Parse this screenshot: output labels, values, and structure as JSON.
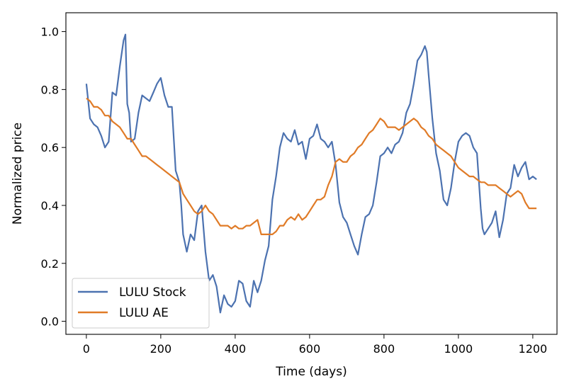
{
  "chart_data": {
    "type": "line",
    "xlabel": "Time (days)",
    "ylabel": "Normalized price",
    "xlim": [
      -55,
      1265
    ],
    "ylim": [
      -0.045,
      1.065
    ],
    "xticks": [
      0,
      200,
      400,
      600,
      800,
      1000,
      1200
    ],
    "yticks": [
      0.0,
      0.2,
      0.4,
      0.6,
      0.8,
      1.0
    ],
    "ytick_labels": [
      "0.0",
      "0.2",
      "0.4",
      "0.6",
      "0.8",
      "1.0"
    ],
    "grid": false,
    "legend_position": "lower-left",
    "series": [
      {
        "name": "LULU Stock",
        "color": "#4c72b0",
        "x": [
          0,
          10,
          20,
          30,
          40,
          50,
          60,
          70,
          80,
          90,
          100,
          105,
          110,
          115,
          120,
          130,
          140,
          150,
          160,
          170,
          180,
          190,
          200,
          210,
          220,
          230,
          240,
          250,
          255,
          260,
          270,
          280,
          290,
          300,
          310,
          320,
          330,
          340,
          350,
          360,
          370,
          380,
          390,
          400,
          410,
          420,
          430,
          440,
          450,
          460,
          470,
          480,
          490,
          500,
          510,
          520,
          530,
          540,
          550,
          560,
          570,
          580,
          590,
          600,
          610,
          620,
          630,
          640,
          650,
          660,
          670,
          680,
          690,
          700,
          710,
          720,
          730,
          740,
          750,
          760,
          770,
          780,
          790,
          800,
          810,
          820,
          830,
          840,
          850,
          860,
          870,
          880,
          890,
          900,
          910,
          915,
          920,
          930,
          940,
          950,
          960,
          970,
          980,
          990,
          1000,
          1010,
          1020,
          1030,
          1040,
          1050,
          1060,
          1065,
          1070,
          1080,
          1090,
          1100,
          1110,
          1120,
          1130,
          1140,
          1150,
          1160,
          1170,
          1180,
          1190,
          1200,
          1210
        ],
        "values": [
          0.82,
          0.7,
          0.68,
          0.67,
          0.64,
          0.6,
          0.62,
          0.79,
          0.78,
          0.88,
          0.97,
          0.99,
          0.75,
          0.72,
          0.62,
          0.63,
          0.72,
          0.78,
          0.77,
          0.76,
          0.79,
          0.82,
          0.84,
          0.78,
          0.74,
          0.74,
          0.52,
          0.48,
          0.4,
          0.3,
          0.24,
          0.3,
          0.28,
          0.38,
          0.4,
          0.24,
          0.14,
          0.16,
          0.12,
          0.03,
          0.09,
          0.06,
          0.05,
          0.07,
          0.14,
          0.13,
          0.07,
          0.05,
          0.14,
          0.1,
          0.14,
          0.21,
          0.26,
          0.42,
          0.5,
          0.6,
          0.65,
          0.63,
          0.62,
          0.66,
          0.61,
          0.62,
          0.56,
          0.63,
          0.64,
          0.68,
          0.63,
          0.62,
          0.6,
          0.62,
          0.54,
          0.41,
          0.36,
          0.34,
          0.3,
          0.26,
          0.23,
          0.3,
          0.36,
          0.37,
          0.4,
          0.48,
          0.57,
          0.58,
          0.6,
          0.58,
          0.61,
          0.62,
          0.65,
          0.72,
          0.75,
          0.82,
          0.9,
          0.92,
          0.95,
          0.93,
          0.85,
          0.7,
          0.58,
          0.52,
          0.42,
          0.4,
          0.46,
          0.55,
          0.62,
          0.64,
          0.65,
          0.64,
          0.6,
          0.58,
          0.39,
          0.32,
          0.3,
          0.32,
          0.34,
          0.38,
          0.29,
          0.35,
          0.44,
          0.46,
          0.54,
          0.5,
          0.53,
          0.55,
          0.49,
          0.5,
          0.49
        ]
      },
      {
        "name": "LULU AE",
        "color": "#e07b27",
        "x": [
          0,
          10,
          20,
          30,
          40,
          50,
          60,
          70,
          80,
          90,
          100,
          110,
          120,
          130,
          140,
          150,
          160,
          170,
          180,
          190,
          200,
          210,
          220,
          230,
          240,
          250,
          260,
          270,
          280,
          290,
          300,
          310,
          320,
          330,
          340,
          350,
          360,
          370,
          380,
          390,
          400,
          410,
          420,
          430,
          440,
          450,
          460,
          470,
          480,
          490,
          500,
          510,
          520,
          530,
          540,
          550,
          560,
          570,
          580,
          590,
          600,
          610,
          620,
          630,
          640,
          650,
          660,
          670,
          680,
          690,
          700,
          710,
          720,
          730,
          740,
          750,
          760,
          770,
          780,
          790,
          800,
          810,
          820,
          830,
          840,
          850,
          860,
          870,
          880,
          890,
          900,
          910,
          920,
          930,
          940,
          950,
          960,
          970,
          980,
          990,
          1000,
          1010,
          1020,
          1030,
          1040,
          1050,
          1060,
          1070,
          1080,
          1090,
          1100,
          1110,
          1120,
          1130,
          1140,
          1150,
          1160,
          1170,
          1180,
          1190,
          1200,
          1210
        ],
        "values": [
          0.77,
          0.76,
          0.74,
          0.74,
          0.73,
          0.71,
          0.71,
          0.69,
          0.68,
          0.67,
          0.65,
          0.63,
          0.63,
          0.61,
          0.59,
          0.57,
          0.57,
          0.56,
          0.55,
          0.54,
          0.53,
          0.52,
          0.51,
          0.5,
          0.49,
          0.48,
          0.44,
          0.42,
          0.4,
          0.38,
          0.37,
          0.38,
          0.4,
          0.38,
          0.37,
          0.35,
          0.33,
          0.33,
          0.33,
          0.32,
          0.33,
          0.32,
          0.32,
          0.33,
          0.33,
          0.34,
          0.35,
          0.3,
          0.3,
          0.3,
          0.3,
          0.31,
          0.33,
          0.33,
          0.35,
          0.36,
          0.35,
          0.37,
          0.35,
          0.36,
          0.38,
          0.4,
          0.42,
          0.42,
          0.43,
          0.47,
          0.5,
          0.55,
          0.56,
          0.55,
          0.55,
          0.57,
          0.58,
          0.6,
          0.61,
          0.63,
          0.65,
          0.66,
          0.68,
          0.7,
          0.69,
          0.67,
          0.67,
          0.67,
          0.66,
          0.67,
          0.68,
          0.69,
          0.7,
          0.69,
          0.67,
          0.66,
          0.64,
          0.63,
          0.61,
          0.6,
          0.59,
          0.58,
          0.57,
          0.55,
          0.53,
          0.52,
          0.51,
          0.5,
          0.5,
          0.49,
          0.48,
          0.48,
          0.47,
          0.47,
          0.47,
          0.46,
          0.45,
          0.44,
          0.43,
          0.44,
          0.45,
          0.44,
          0.41,
          0.39,
          0.39,
          0.39
        ]
      }
    ]
  }
}
